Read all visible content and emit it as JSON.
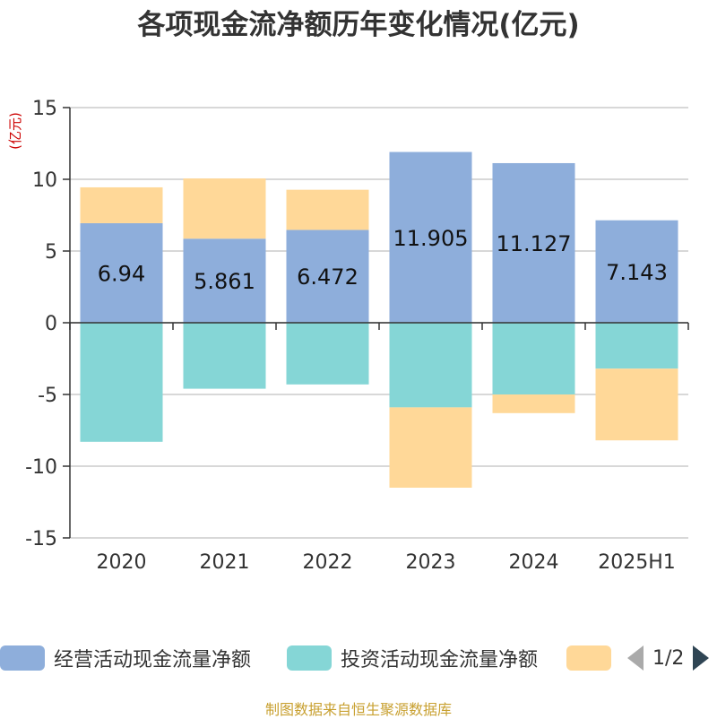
{
  "title": "各项现金流净额历年变化情况(亿元)",
  "source_note": "制图数据来自恒生聚源数据库",
  "legend_pager": {
    "prev_icon": "chevron-left-icon",
    "next_icon": "chevron-right-icon",
    "page_text": "1/2"
  },
  "chart_data": {
    "type": "bar",
    "stacked": true,
    "title": "各项现金流净额历年变化情况(亿元)",
    "ylabel": "(亿元)",
    "ylim": [
      -15,
      15
    ],
    "yticks": [
      15,
      10,
      5,
      0,
      -5,
      -10,
      -15
    ],
    "ytick_labels": [
      "15",
      "10",
      "5",
      "0",
      "-5",
      "-10",
      "-15"
    ],
    "grid": true,
    "legend_position": "bottom",
    "categories": [
      "2020",
      "2021",
      "2022",
      "2023",
      "2024",
      "2025H1"
    ],
    "series": [
      {
        "name": "经营活动现金流量净额",
        "color": "#8eaedb",
        "values": [
          6.94,
          5.861,
          6.472,
          11.905,
          11.127,
          7.143
        ],
        "data_labels": [
          "6.94",
          "5.861",
          "6.472",
          "11.905",
          "11.127",
          "7.143"
        ]
      },
      {
        "name": "投资活动现金流量净额",
        "color": "#85d6d6",
        "values": [
          -8.3,
          -4.6,
          -4.3,
          -5.9,
          -5.0,
          -3.2
        ]
      },
      {
        "name": "",
        "color": "#ffd898",
        "values": [
          2.5,
          4.2,
          2.8,
          -5.6,
          -1.3,
          -5.0
        ]
      }
    ]
  }
}
